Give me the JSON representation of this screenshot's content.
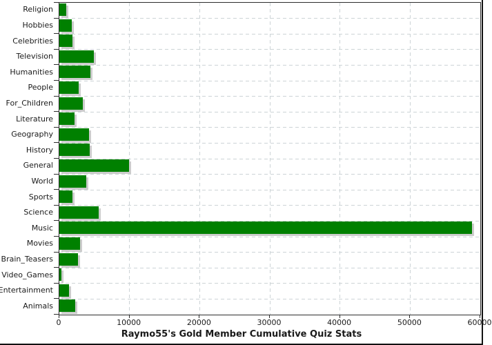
{
  "chart_data": {
    "type": "bar",
    "orientation": "horizontal",
    "title": "Raymo55's Gold Member Cumulative Quiz Stats",
    "categories": [
      "Religion",
      "Hobbies",
      "Celebrities",
      "Television",
      "Humanities",
      "People",
      "For_Children",
      "Literature",
      "Geography",
      "History",
      "General",
      "World",
      "Sports",
      "Science",
      "Music",
      "Movies",
      "Brain_Teasers",
      "Video_Games",
      "Entertainment",
      "Animals"
    ],
    "values": [
      1000,
      1750,
      1850,
      4900,
      4450,
      2750,
      3350,
      2150,
      4250,
      4300,
      9900,
      3850,
      1850,
      5650,
      58800,
      2950,
      2700,
      300,
      1350,
      2300
    ],
    "xlabel": "",
    "ylabel": "",
    "xlim": [
      0,
      60000
    ],
    "x_ticks": [
      0,
      10000,
      20000,
      30000,
      40000,
      50000,
      60000
    ],
    "x_tick_labels": [
      "0",
      "10000",
      "20000",
      "30000",
      "40000",
      "50000",
      "60000"
    ],
    "grid": "dashed",
    "legend": "none",
    "colors": {
      "bar": "#008000",
      "bar_shadow": "#cccccc",
      "gridline": "#ccd3d6",
      "axis": "#2b2b2b",
      "text": "#1a1a1a",
      "background": "#ffffff"
    }
  }
}
